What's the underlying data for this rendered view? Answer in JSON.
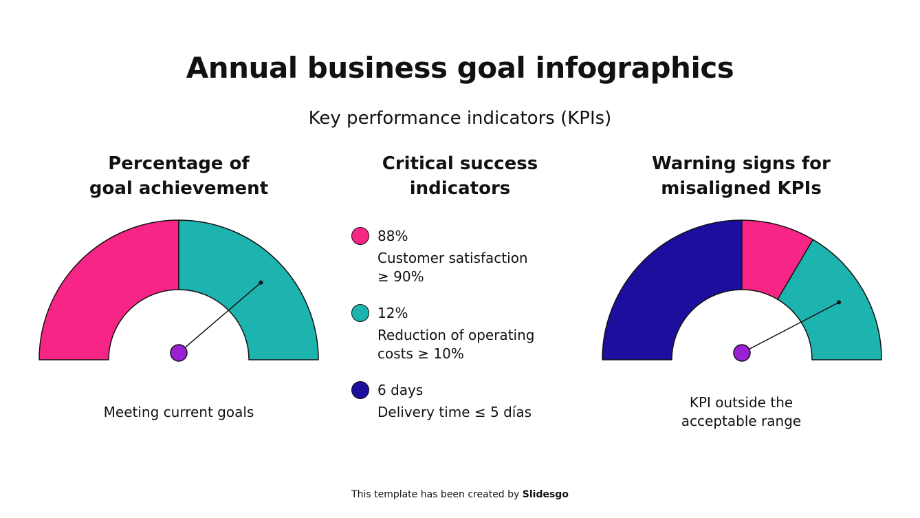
{
  "title": "Annual business goal infographics",
  "subtitle": "Key performance indicators (KPIs)",
  "columns": {
    "left": {
      "heading_lines": [
        "Percentage of",
        "goal achievement"
      ],
      "caption_lines": [
        "Meeting current goals"
      ],
      "gauge": {
        "segments": [
          {
            "fraction": 0.5,
            "color": "#F72585"
          },
          {
            "fraction": 0.5,
            "color": "#1DB3AE"
          }
        ],
        "needle_fraction": 0.76,
        "hub_color": "#9B1FD3"
      }
    },
    "middle": {
      "heading_lines": [
        "Critical success",
        "indicators"
      ],
      "indicators": [
        {
          "color": "#F72585",
          "value": "88%",
          "description_lines": [
            "Customer satisfaction",
            "≥ 90%"
          ]
        },
        {
          "color": "#1DB3AE",
          "value": "12%",
          "description_lines": [
            "Reduction of operating",
            "costs ≥ 10%"
          ]
        },
        {
          "color": "#1D0E9E",
          "value": "6 days",
          "description_lines": [
            "Delivery time ≤ 5 días"
          ]
        }
      ]
    },
    "right": {
      "heading_lines": [
        "Warning signs for",
        "misaligned KPIs"
      ],
      "caption_lines": [
        "KPI outside the",
        "acceptable range"
      ],
      "gauge": {
        "segments": [
          {
            "fraction": 0.5,
            "color": "#1D0E9E"
          },
          {
            "fraction": 0.17,
            "color": "#F72585"
          },
          {
            "fraction": 0.33,
            "color": "#1DB3AE"
          }
        ],
        "needle_fraction": 0.83,
        "hub_color": "#9B1FD3"
      }
    }
  },
  "footer": {
    "prefix": "This template has been created by ",
    "brand": "Slidesgo"
  }
}
